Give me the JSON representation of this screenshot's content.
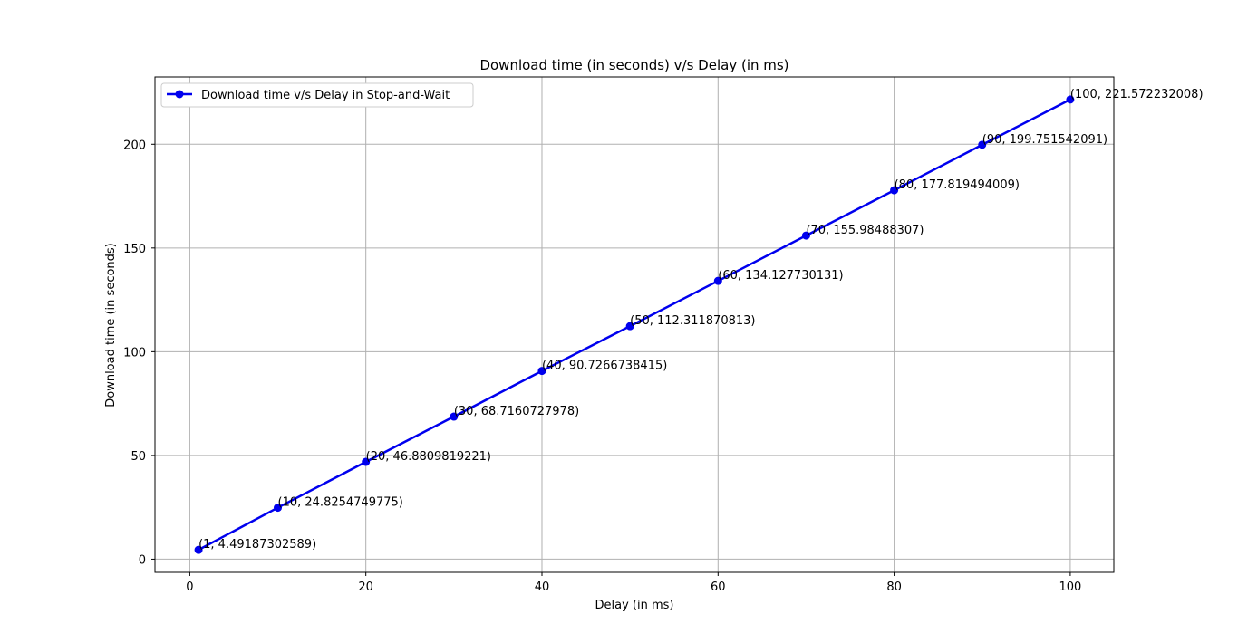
{
  "chart_data": {
    "type": "line",
    "title": "Download time (in seconds) v/s Delay (in ms)",
    "xlabel": "Delay (in ms)",
    "ylabel": "Download time (in seconds)",
    "xlim": [
      -3.95,
      104.95
    ],
    "ylim": [
      -6.36,
      232.43
    ],
    "x_ticks": [
      0,
      20,
      40,
      60,
      80,
      100
    ],
    "y_ticks": [
      0,
      50,
      100,
      150,
      200
    ],
    "grid": true,
    "legend_position": "top-left",
    "series": [
      {
        "name": "Download time v/s Delay in Stop-and-Wait",
        "color": "#0000ee",
        "marker": "circle",
        "x": [
          1,
          10,
          20,
          30,
          40,
          50,
          60,
          70,
          80,
          90,
          100
        ],
        "y": [
          4.49187302589,
          24.8254749775,
          46.8809819221,
          68.7160727978,
          90.7266738415,
          112.311870813,
          134.127730131,
          155.98488307,
          177.819494009,
          199.751542091,
          221.572232008
        ],
        "point_labels": [
          "(1, 4.49187302589)",
          "(10, 24.8254749775)",
          "(20, 46.8809819221)",
          "(30, 68.7160727978)",
          "(40, 90.7266738415)",
          "(50, 112.311870813)",
          "(60, 134.127730131)",
          "(70, 155.98488307)",
          "(80, 177.819494009)",
          "(90, 199.751542091)",
          "(100, 221.572232008)"
        ]
      }
    ]
  }
}
